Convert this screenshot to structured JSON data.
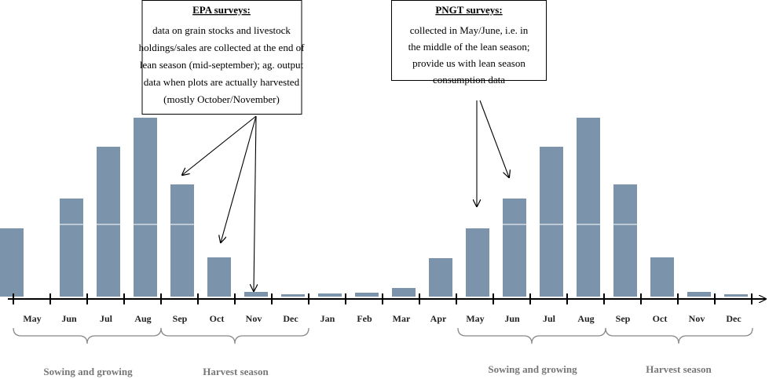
{
  "chart_data": {
    "type": "bar",
    "categories": [
      "May",
      "Jun",
      "Jul",
      "Aug",
      "Sep",
      "Oct",
      "Nov",
      "Dec",
      "Jan",
      "Feb",
      "Mar",
      "Apr",
      "May",
      "Jun",
      "Jul",
      "Aug",
      "Sep",
      "Oct",
      "Nov",
      "Dec"
    ],
    "values": [
      87,
      125,
      191,
      228,
      143,
      50,
      6,
      3,
      4,
      5,
      11,
      49,
      87,
      125,
      191,
      228,
      143,
      50,
      6,
      3
    ],
    "color": "#7b93ab",
    "ylim": [
      0,
      230
    ],
    "annotations": [
      {
        "title": "EPA surveys:",
        "lines": [
          "data on grain stocks and livestock",
          "holdings/sales are collected at the end of",
          "lean season (mid-september); ag. output",
          "data when plots are actually harvested",
          "(mostly October/November)"
        ]
      },
      {
        "title": "PNGT surveys:",
        "lines": [
          "collected in May/June, i.e. in",
          "the middle of the lean season;",
          "provide us with lean season",
          "consumption data"
        ]
      }
    ],
    "season_labels": [
      "Sowing and growing",
      "Harvest season",
      "Sowing and growing",
      "Harvest season"
    ]
  }
}
